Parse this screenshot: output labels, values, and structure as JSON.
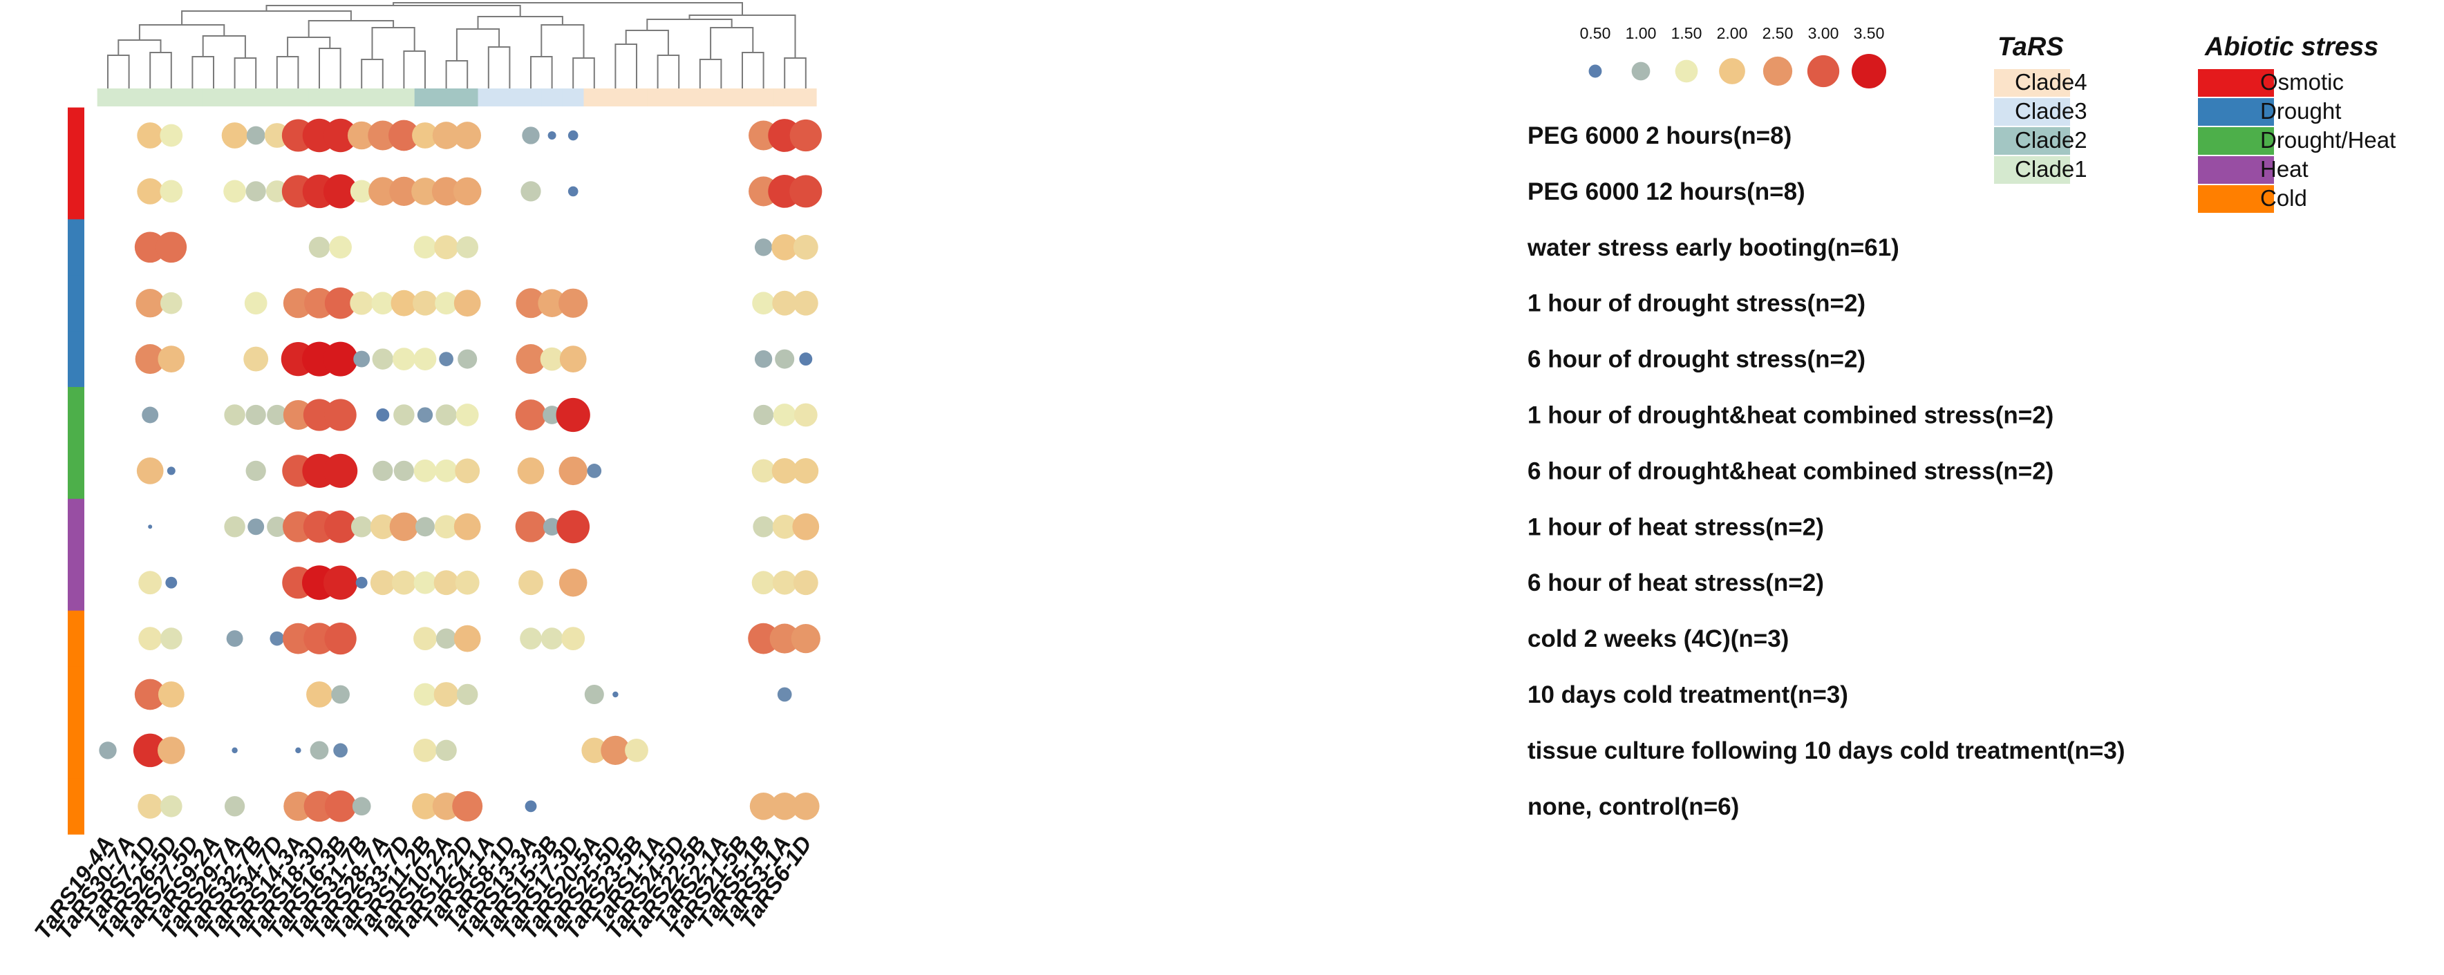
{
  "chart_data": {
    "type": "dot-heatmap",
    "genes": [
      "TaRS19-4A",
      "TaRS30-7A",
      "TaRS7-1D",
      "TaRS26-5D",
      "TaRS27-5D",
      "TaRS9-2A",
      "TaRS29-7A",
      "TaRS32-7B",
      "TaRS34-7D",
      "TaRS14-3A",
      "TaRS18-3D",
      "TaRS16-3B",
      "TaRS31-7B",
      "TaRS28-7A",
      "TaRS33-7D",
      "TaRS11-2B",
      "TaRS10-2A",
      "TaRS12-2D",
      "TaRS4-1A",
      "TaRS8-1D",
      "TaRS13-3A",
      "TaRS15-3B",
      "TaRS17-3D",
      "TaRS20-5A",
      "TaRS25-5D",
      "TaRS23-5B",
      "TaRS1-1A",
      "TaRS24-5D",
      "TaRS22-5B",
      "TaRS2-1A",
      "TaRS21-5B",
      "TaRS5-1B",
      "TaRS3-1A",
      "TaRS6-1D"
    ],
    "gene_clades": [
      "Clade1",
      "Clade1",
      "Clade1",
      "Clade1",
      "Clade1",
      "Clade1",
      "Clade1",
      "Clade1",
      "Clade1",
      "Clade1",
      "Clade1",
      "Clade1",
      "Clade1",
      "Clade1",
      "Clade1",
      "Clade2",
      "Clade2",
      "Clade2",
      "Clade3",
      "Clade3",
      "Clade3",
      "Clade3",
      "Clade3",
      "Clade4",
      "Clade4",
      "Clade4",
      "Clade4",
      "Clade4",
      "Clade4",
      "Clade4",
      "Clade4",
      "Clade4",
      "Clade4",
      "Clade4"
    ],
    "conditions": [
      {
        "label": "PEG 6000 2 hours(n=8)",
        "stress": "Osmotic"
      },
      {
        "label": "PEG 6000 12 hours(n=8)",
        "stress": "Osmotic"
      },
      {
        "label": "water stress early booting(n=61)",
        "stress": "Drought"
      },
      {
        "label": "1 hour of drought stress(n=2)",
        "stress": "Drought"
      },
      {
        "label": "6 hour of drought stress(n=2)",
        "stress": "Drought"
      },
      {
        "label": "1 hour of drought&heat combined stress(n=2)",
        "stress": "Drought/Heat"
      },
      {
        "label": "6 hour of drought&heat combined stress(n=2)",
        "stress": "Drought/Heat"
      },
      {
        "label": "1 hour of heat stress(n=2)",
        "stress": "Heat"
      },
      {
        "label": "6 hour of heat stress(n=2)",
        "stress": "Heat"
      },
      {
        "label": "cold 2 weeks (4C)(n=3)",
        "stress": "Cold"
      },
      {
        "label": "10 days cold treatment(n=3)",
        "stress": "Cold"
      },
      {
        "label": "tissue culture following 10 days cold treatment(n=3)",
        "stress": "Cold"
      },
      {
        "label": "none, control(n=6)",
        "stress": "Cold"
      }
    ],
    "values": [
      [
        null,
        null,
        2.0,
        1.5,
        null,
        null,
        2.0,
        1.0,
        1.8,
        3.1,
        3.3,
        3.3,
        2.3,
        2.6,
        2.8,
        2.0,
        2.2,
        2.2,
        null,
        null,
        0.9,
        0.2,
        0.3,
        null,
        null,
        null,
        null,
        null,
        null,
        null,
        null,
        2.6,
        3.2,
        3.0
      ],
      [
        null,
        null,
        2.0,
        1.5,
        null,
        null,
        1.5,
        1.2,
        1.4,
        3.1,
        3.3,
        3.4,
        1.5,
        2.4,
        2.5,
        2.2,
        2.4,
        2.3,
        null,
        null,
        1.2,
        null,
        0.3,
        null,
        null,
        null,
        null,
        null,
        null,
        null,
        null,
        2.6,
        3.2,
        3.1
      ],
      [
        null,
        null,
        2.8,
        2.8,
        null,
        null,
        null,
        null,
        null,
        null,
        1.3,
        1.5,
        null,
        null,
        null,
        1.5,
        1.7,
        1.4,
        null,
        null,
        null,
        null,
        null,
        null,
        null,
        null,
        null,
        null,
        null,
        null,
        null,
        0.9,
        2.0,
        1.8
      ],
      [
        null,
        null,
        2.4,
        1.4,
        null,
        null,
        null,
        1.5,
        null,
        2.6,
        2.7,
        2.9,
        1.6,
        1.5,
        2.0,
        1.8,
        1.5,
        2.1,
        null,
        null,
        2.6,
        2.3,
        2.5,
        null,
        null,
        null,
        null,
        null,
        null,
        null,
        null,
        1.5,
        1.8,
        1.8
      ],
      [
        null,
        null,
        2.6,
        2.1,
        null,
        null,
        null,
        1.8,
        null,
        3.4,
        3.5,
        3.5,
        0.8,
        1.3,
        1.5,
        1.5,
        0.6,
        1.1,
        null,
        null,
        2.6,
        1.6,
        2.1,
        null,
        null,
        null,
        null,
        null,
        null,
        null,
        null,
        0.9,
        1.1,
        0.5
      ],
      [
        null,
        null,
        0.8,
        null,
        null,
        null,
        1.3,
        1.2,
        1.2,
        2.6,
        3.0,
        3.0,
        null,
        0.5,
        1.3,
        0.7,
        1.3,
        1.5,
        null,
        null,
        2.8,
        1.0,
        3.4,
        null,
        null,
        null,
        null,
        null,
        null,
        null,
        null,
        1.2,
        1.5,
        1.6
      ],
      [
        null,
        null,
        2.1,
        0.2,
        null,
        null,
        null,
        1.2,
        null,
        3.0,
        3.4,
        3.4,
        null,
        1.2,
        1.2,
        1.5,
        1.5,
        1.8,
        null,
        null,
        2.1,
        null,
        2.4,
        0.6,
        null,
        null,
        null,
        null,
        null,
        null,
        null,
        1.6,
        1.9,
        1.9
      ],
      [
        null,
        null,
        0.05,
        null,
        null,
        null,
        1.3,
        0.8,
        1.2,
        2.8,
        3.0,
        3.1,
        1.3,
        1.8,
        2.4,
        1.1,
        1.6,
        2.1,
        null,
        null,
        2.8,
        0.9,
        3.2,
        null,
        null,
        null,
        null,
        null,
        null,
        null,
        null,
        1.3,
        1.7,
        2.1
      ],
      [
        null,
        null,
        1.6,
        0.4,
        null,
        null,
        null,
        null,
        null,
        3.0,
        3.5,
        3.4,
        0.4,
        1.8,
        1.7,
        1.5,
        1.8,
        1.7,
        null,
        null,
        1.8,
        null,
        2.3,
        null,
        null,
        null,
        null,
        null,
        null,
        null,
        null,
        1.6,
        1.7,
        1.8
      ],
      [
        null,
        null,
        1.6,
        1.4,
        null,
        null,
        0.8,
        null,
        0.6,
        2.8,
        2.9,
        3.0,
        null,
        null,
        null,
        1.6,
        1.2,
        2.1,
        null,
        null,
        1.4,
        1.4,
        1.6,
        null,
        null,
        null,
        null,
        null,
        null,
        null,
        null,
        2.8,
        2.6,
        2.5
      ],
      [
        null,
        null,
        2.8,
        2.0,
        null,
        null,
        null,
        null,
        null,
        null,
        2.0,
        1.0,
        null,
        null,
        null,
        1.5,
        1.8,
        1.3,
        null,
        null,
        null,
        null,
        null,
        1.1,
        0.1,
        null,
        null,
        null,
        null,
        null,
        null,
        null,
        0.6,
        null
      ],
      [
        0.9,
        null,
        3.3,
        2.2,
        null,
        null,
        0.1,
        null,
        null,
        0.1,
        1.0,
        0.6,
        null,
        null,
        null,
        1.6,
        1.3,
        null,
        null,
        null,
        null,
        null,
        null,
        1.9,
        2.5,
        1.6,
        null,
        null,
        null,
        null,
        null,
        null,
        null,
        null
      ],
      [
        null,
        null,
        1.8,
        1.4,
        null,
        null,
        1.2,
        null,
        null,
        2.5,
        2.8,
        2.9,
        1.0,
        null,
        null,
        2.0,
        2.2,
        2.7,
        null,
        null,
        0.4,
        null,
        null,
        null,
        null,
        null,
        null,
        null,
        null,
        null,
        null,
        2.2,
        2.2,
        2.2
      ]
    ],
    "size_legend": {
      "values": [
        "0.50",
        "1.00",
        "1.50",
        "2.00",
        "2.50",
        "3.00",
        "3.50"
      ]
    },
    "color_scale": [
      "#5b7fae",
      "#a9b9b2",
      "#ecebb6",
      "#f0c787",
      "#e79768",
      "#df5b45",
      "#d7191c"
    ],
    "clade_legend": {
      "title": "TaRS",
      "items": [
        {
          "label": "Clade4",
          "color": "#fbe3c9"
        },
        {
          "label": "Clade3",
          "color": "#d3e3f2"
        },
        {
          "label": "Clade2",
          "color": "#a3c6c3"
        },
        {
          "label": "Clade1",
          "color": "#d5e9cf"
        }
      ]
    },
    "stress_legend": {
      "title": "Abiotic stress",
      "items": [
        {
          "label": "Osmotic",
          "color": "#e41a1c"
        },
        {
          "label": "Drought",
          "color": "#377eb8"
        },
        {
          "label": "Drought/Heat",
          "color": "#4daf4a"
        },
        {
          "label": "Heat",
          "color": "#984ea3"
        },
        {
          "label": "Cold",
          "color": "#ff7f00"
        }
      ]
    }
  }
}
